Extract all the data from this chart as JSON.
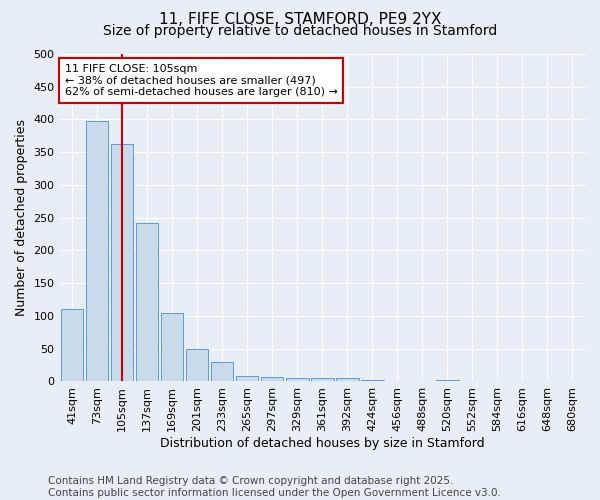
{
  "title": "11, FIFE CLOSE, STAMFORD, PE9 2YX",
  "subtitle": "Size of property relative to detached houses in Stamford",
  "xlabel": "Distribution of detached houses by size in Stamford",
  "ylabel": "Number of detached properties",
  "categories": [
    "41sqm",
    "73sqm",
    "105sqm",
    "137sqm",
    "169sqm",
    "201sqm",
    "233sqm",
    "265sqm",
    "297sqm",
    "329sqm",
    "361sqm",
    "392sqm",
    "424sqm",
    "456sqm",
    "488sqm",
    "520sqm",
    "552sqm",
    "584sqm",
    "616sqm",
    "648sqm",
    "680sqm"
  ],
  "values": [
    110,
    397,
    363,
    242,
    105,
    50,
    29,
    9,
    7,
    5,
    6,
    5,
    2,
    1,
    0,
    2,
    0,
    0,
    1,
    0,
    0
  ],
  "bar_color": "#c9daea",
  "bar_edge_color": "#5b9bd5",
  "highlight_bar_index": 2,
  "highlight_line_color": "#cc0000",
  "annotation_line1": "11 FIFE CLOSE: 105sqm",
  "annotation_line2": "← 38% of detached houses are smaller (497)",
  "annotation_line3": "62% of semi-detached houses are larger (810) →",
  "annotation_box_color": "#ffffff",
  "annotation_box_edge_color": "#cc0000",
  "ylim": [
    0,
    500
  ],
  "yticks": [
    0,
    50,
    100,
    150,
    200,
    250,
    300,
    350,
    400,
    450,
    500
  ],
  "footer": "Contains HM Land Registry data © Crown copyright and database right 2025.\nContains public sector information licensed under the Open Government Licence v3.0.",
  "background_color": "#e8eef5",
  "plot_background_color": "#e8eef5",
  "title_fontsize": 11,
  "subtitle_fontsize": 10,
  "axis_label_fontsize": 9,
  "tick_fontsize": 8,
  "footer_fontsize": 7.5
}
